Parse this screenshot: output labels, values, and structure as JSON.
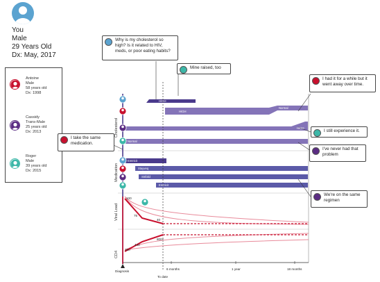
{
  "you": {
    "label": "You",
    "sex": "Male",
    "age": "29 Years Old",
    "dx": "Dx: May, 2017"
  },
  "peers": [
    {
      "name": "Antoine",
      "sex": "Male",
      "age": "58 years old",
      "dx": "Dx: 1998",
      "color": "#c8102e"
    },
    {
      "name": "Cassidy",
      "sex": "Trans-Male",
      "age": "25 years old",
      "dx": "Dx: 2013",
      "color": "#5b2c83"
    },
    {
      "name": "Roger",
      "sex": "Male",
      "age": "39 years old",
      "dx": "Dx: 2015",
      "color": "#3cb7a8"
    }
  ],
  "bubbles": {
    "question": "Why is my cholesterol so high? Is it related to HIV, meds, or poor eating habits?",
    "mine_raised": "Mine raised, too",
    "had_it": "I had it for a while but it went away over time.",
    "still": "I still experience it.",
    "never": "I've never had that problem",
    "take_med": "I take the same medication.",
    "same_regimen": "We're on the same regimen"
  },
  "sections": {
    "cholesterol": "Cholesterol",
    "medication": "Medication",
    "viral_load": "Viral Load",
    "cd4": "CD4"
  },
  "bar_labels": {
    "high_you": "HIGH",
    "high_a": "HIGH",
    "normal_a": "Normal",
    "high_c": "HIGH",
    "normal_r": "Normal",
    "med1": "Emtricit",
    "med2": "Stayveq",
    "med3": "Stribild",
    "med4": "Emtricit"
  },
  "values": {
    "vl_you": "100",
    "vl_peer": "75",
    "vl_end": "40",
    "cd4_you": "350",
    "cd4_peer": "440",
    "cd4_end": "800+"
  },
  "axis": {
    "diagnosis": "Diagnosis",
    "to_date": "To date",
    "m6": "6 months",
    "y1": "1 year",
    "m18": "18 months"
  },
  "colors": {
    "purple_dark": "#4a3a8c",
    "purple_light": "#8474b8",
    "red": "#c8102e",
    "pink": "#e88a9a",
    "teal": "#3cb7a8",
    "avatar_blue": "#5ba3d0"
  }
}
